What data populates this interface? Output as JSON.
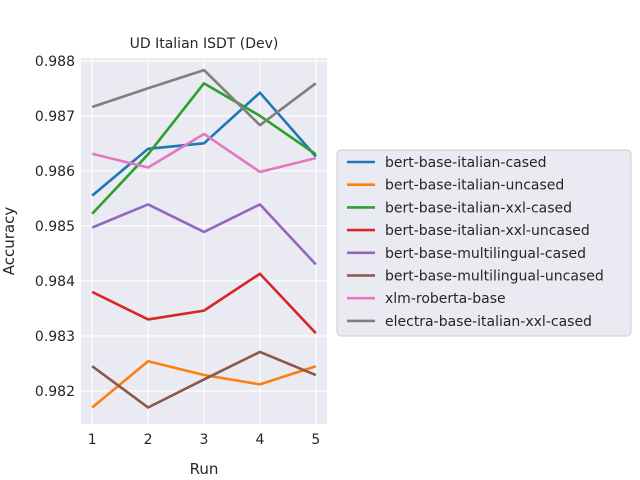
{
  "chart_data": {
    "type": "line",
    "title": "UD Italian ISDT (Dev)",
    "xlabel": "Run",
    "ylabel": "Accuracy",
    "x": [
      1,
      2,
      3,
      4,
      5
    ],
    "xlim": [
      0.8,
      5.2
    ],
    "ylim": [
      0.9814,
      0.98805
    ],
    "yticks": [
      0.982,
      0.983,
      0.984,
      0.985,
      0.986,
      0.987,
      0.988
    ],
    "grid": true,
    "legend_position": "right",
    "series": [
      {
        "name": "bert-base-italian-cased",
        "color": "#1f77b4",
        "values": [
          0.98555,
          0.9864,
          0.9865,
          0.98742,
          0.98626
        ]
      },
      {
        "name": "bert-base-italian-uncased",
        "color": "#ff7f0e",
        "values": [
          0.9817,
          0.98254,
          0.98229,
          0.98212,
          0.98245
        ]
      },
      {
        "name": "bert-base-italian-xxl-cased",
        "color": "#2ca02c",
        "values": [
          0.98522,
          0.9863,
          0.98759,
          0.987,
          0.9863
        ]
      },
      {
        "name": "bert-base-italian-xxl-uncased",
        "color": "#d62728",
        "values": [
          0.9838,
          0.9833,
          0.98346,
          0.98413,
          0.98305
        ]
      },
      {
        "name": "bert-base-multilingual-cased",
        "color": "#9467bd",
        "values": [
          0.98497,
          0.98539,
          0.98489,
          0.98539,
          0.9843
        ]
      },
      {
        "name": "bert-base-multilingual-uncased",
        "color": "#8c564b",
        "values": [
          0.98245,
          0.9817,
          0.98221,
          0.98271,
          0.98229
        ]
      },
      {
        "name": "xlm-roberta-base",
        "color": "#e377c2",
        "values": [
          0.98631,
          0.98606,
          0.98667,
          0.98598,
          0.98623
        ]
      },
      {
        "name": "electra-base-italian-xxl-cased",
        "color": "#7f7f7f",
        "values": [
          0.98716,
          0.9875,
          0.98783,
          0.98683,
          0.98759
        ]
      }
    ]
  }
}
